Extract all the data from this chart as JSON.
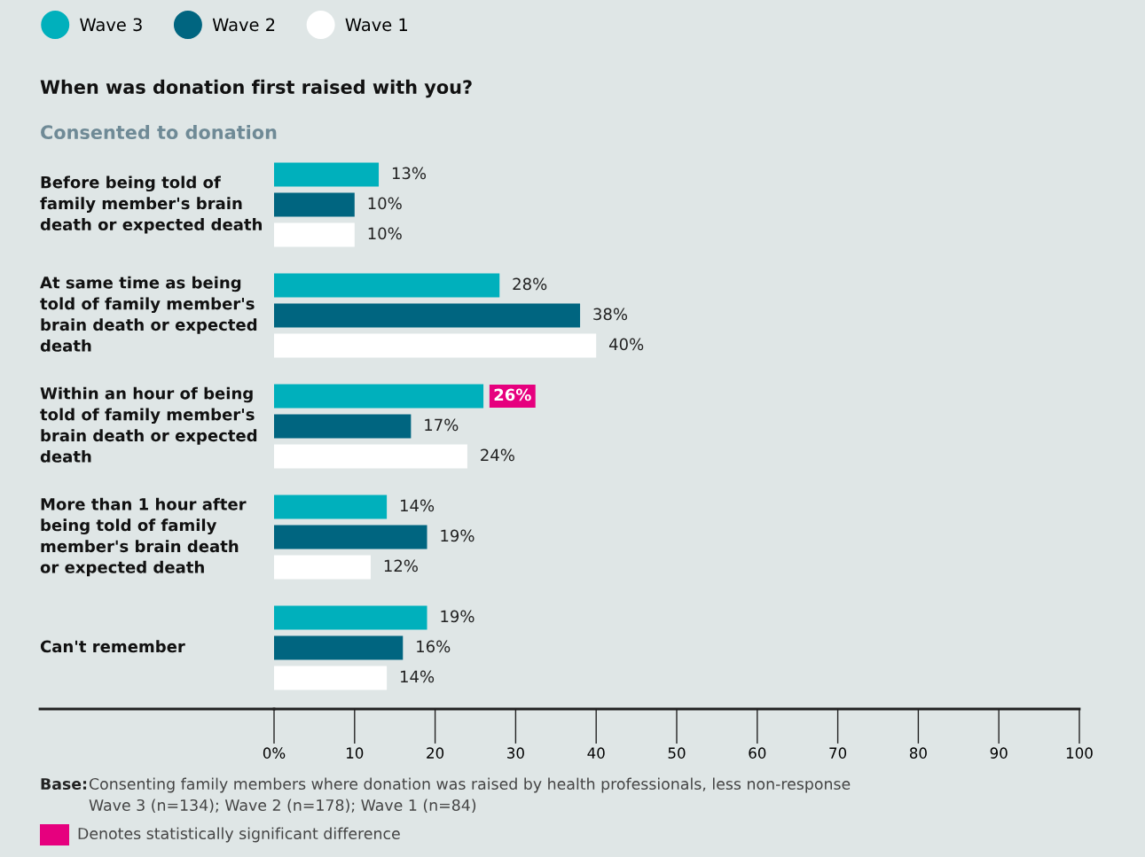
{
  "chart_data": {
    "type": "bar",
    "orientation": "horizontal",
    "title": "When was donation first raised with you?",
    "subtitle": "Consented to donation",
    "categories": [
      "Before being told of\nfamily member's brain\ndeath or expected death",
      "At same time as being\ntold of family member's\nbrain death or expected\ndeath",
      "Within an hour of being\ntold of family member's\nbrain death or expected\ndeath",
      "More than 1 hour after\nbeing told of family\nmember's brain death\nor expected death",
      "Can't remember"
    ],
    "series": [
      {
        "name": "Wave 3",
        "color": "#00b0bc",
        "values": [
          13,
          28,
          26,
          14,
          19
        ],
        "value_labels": [
          "13%",
          "28%",
          null,
          "14%",
          "19%"
        ]
      },
      {
        "name": "Wave 2",
        "color": "#006580",
        "values": [
          10,
          38,
          17,
          19,
          16
        ],
        "value_labels": [
          "10%",
          "38%",
          "17%",
          "19%",
          "16%"
        ]
      },
      {
        "name": "Wave 1",
        "color": "#ffffff",
        "values": [
          10,
          40,
          24,
          12,
          14
        ],
        "value_labels": [
          "10%",
          "40%",
          "24%",
          "12%",
          "14%"
        ]
      }
    ],
    "xlim": [
      0,
      100
    ],
    "xticks": [
      {
        "value": 0,
        "label": "0%"
      },
      10,
      20,
      30,
      40,
      50,
      60,
      70,
      80,
      90,
      100
    ],
    "grid": false,
    "legend": "top left",
    "annotations": [
      {
        "text": "26%",
        "x": 26
      },
      "Base:",
      "Consenting family members where donation was raised by health professionals, less non-response",
      "Wave 3 (n=134); Wave 2 (n=178); Wave 1 (n=84)",
      "Denotes statistically significant difference"
    ]
  }
}
